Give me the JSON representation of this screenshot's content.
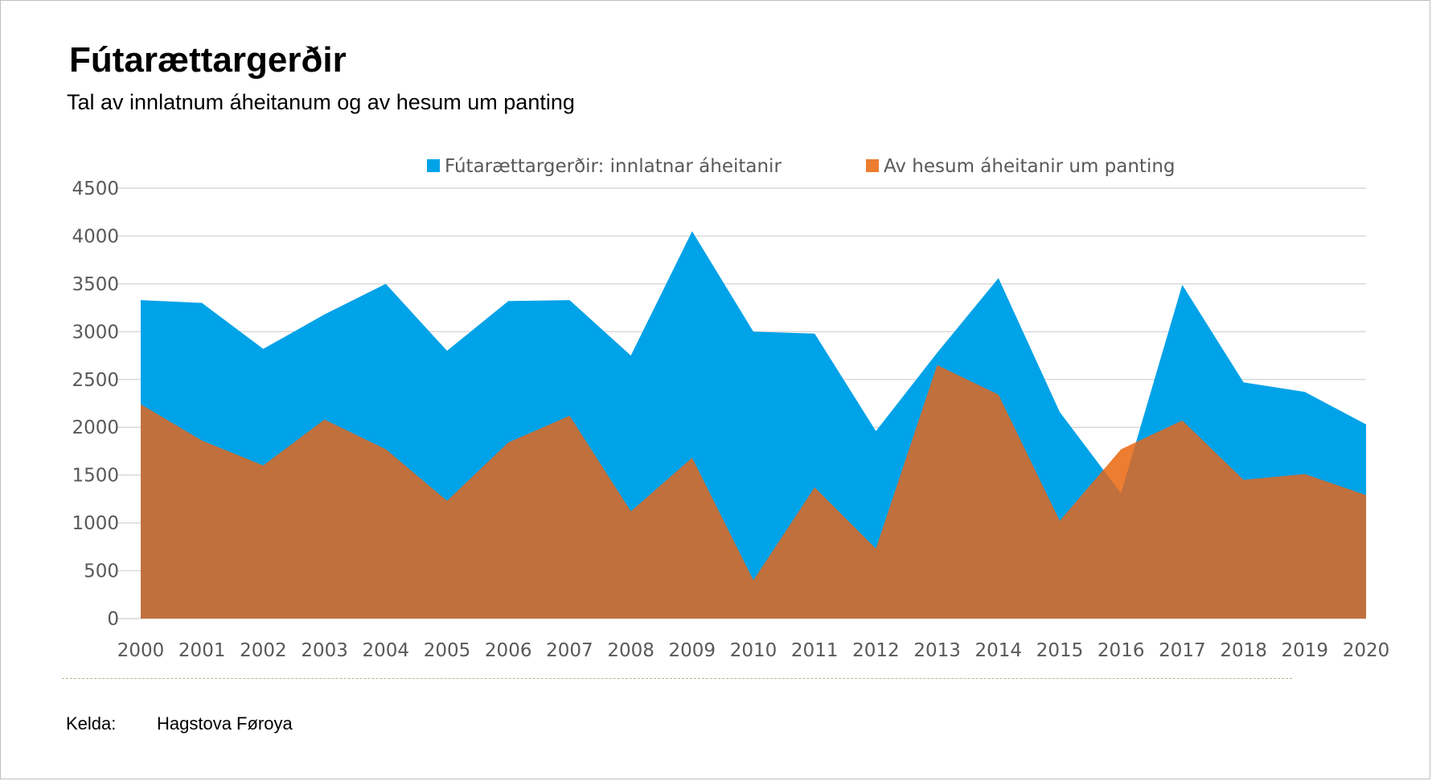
{
  "chart_data": {
    "type": "area",
    "title": "Fútarættargerðir",
    "subtitle": "Tal av innlatnum áheitanum og av hesum um panting",
    "x": [
      "2000",
      "2001",
      "2002",
      "2003",
      "2004",
      "2005",
      "2006",
      "2007",
      "2008",
      "2009",
      "2010",
      "2011",
      "2012",
      "2013",
      "2014",
      "2015",
      "2016",
      "2017",
      "2018",
      "2019",
      "2020"
    ],
    "series": [
      {
        "name": "Fútarættargerðir: innlatnar áheitanir",
        "color": "#00a2e8",
        "values": [
          3330,
          3300,
          2820,
          3180,
          3500,
          2800,
          3320,
          3330,
          2750,
          4050,
          3000,
          2980,
          1960,
          2780,
          3560,
          2160,
          1310,
          3490,
          2470,
          2370,
          2030
        ]
      },
      {
        "name": "Av hesum áheitanir um panting",
        "color": "#ed7d31",
        "values": [
          2240,
          1860,
          1600,
          2080,
          1770,
          1230,
          1840,
          2120,
          1120,
          1680,
          400,
          1370,
          730,
          2650,
          2340,
          1020,
          1770,
          2070,
          1450,
          1510,
          1290
        ]
      }
    ],
    "overlap_color": "#c0703d",
    "ylim": [
      0,
      4500
    ],
    "yticks": [
      "0",
      "500",
      "1000",
      "1500",
      "2000",
      "2500",
      "3000",
      "3500",
      "4000",
      "4500"
    ],
    "grid": true,
    "legend_position": "top"
  },
  "source": {
    "label": "Kelda:",
    "value": "Hagstova Føroya"
  }
}
